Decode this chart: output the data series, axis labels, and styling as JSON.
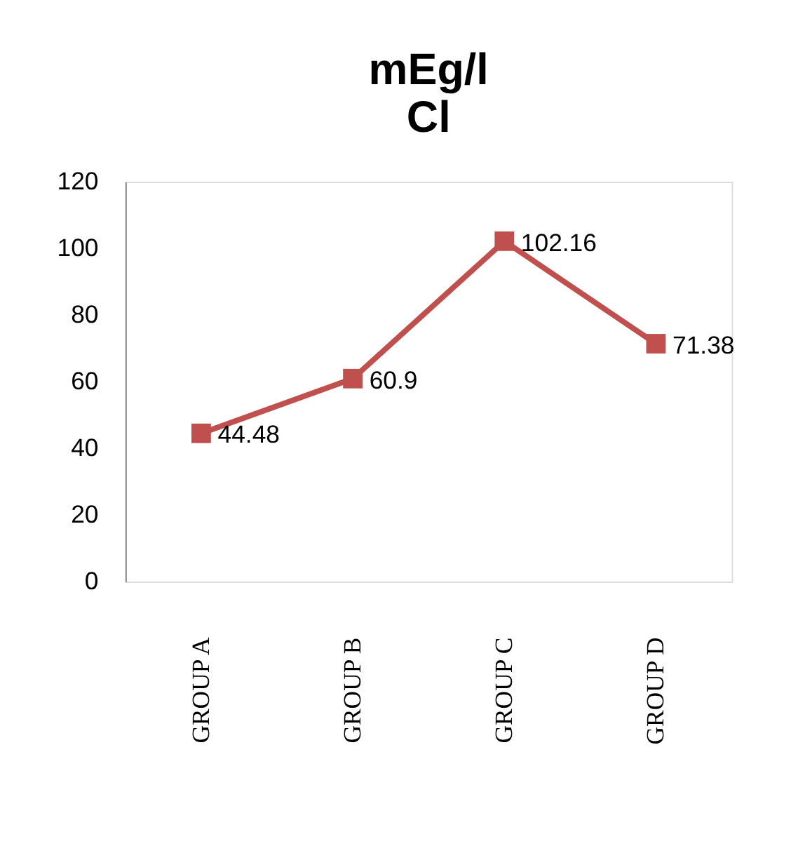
{
  "chart_data": {
    "type": "line",
    "title": "mEg/l",
    "subtitle": "Cl",
    "categories": [
      "GROUP A",
      "GROUP B",
      "GROUP C",
      "GROUP D"
    ],
    "series": [
      {
        "color": "#c0504d",
        "values": [
          44.48,
          60.9,
          102.16,
          71.38
        ]
      }
    ],
    "ylim": [
      0,
      120
    ],
    "yticks": [
      0,
      20,
      40,
      60,
      80,
      100,
      120
    ],
    "grid": false,
    "legend": false,
    "marker": "square",
    "line_style": "solid",
    "data_labels": true
  }
}
